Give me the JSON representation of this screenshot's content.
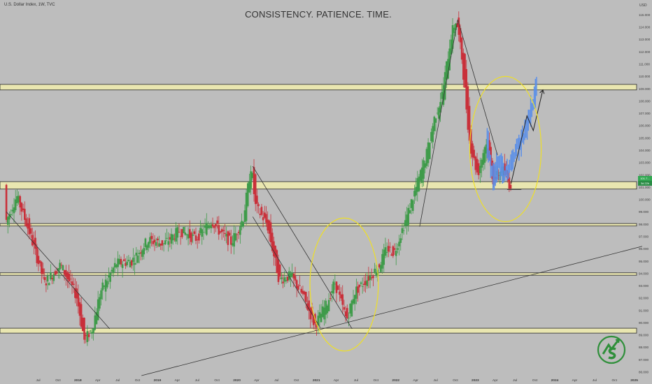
{
  "header": {
    "symbol": "U.S. Dollar Index, 1W, TVC",
    "title": "CONSISTENCY. PATIENCE. TIME."
  },
  "price_labels": {
    "last": "101.7...",
    "countdown": "3d 22h"
  },
  "colors": {
    "background": "#bdbdbd",
    "up": "#3f9b4a",
    "down": "#c9303a",
    "projection": "#5b8fe8",
    "zone_fill": "#e9e6b0",
    "zone_border": "#3b3b3b",
    "circle": "#eedf27",
    "axis_text": "#3b3b3b",
    "logo": "#2f8f3a"
  },
  "chart_data": {
    "type": "candlestick",
    "title": "CONSISTENCY. PATIENCE. TIME.",
    "series_name": "U.S. Dollar Index, 1W, TVC",
    "y_axis": {
      "currency": "USD",
      "range": [
        85.7,
        116.2
      ],
      "ticks": [
        "115.000",
        "114.000",
        "113.000",
        "112.000",
        "111.000",
        "110.000",
        "109.000",
        "108.000",
        "107.000",
        "106.000",
        "105.000",
        "104.000",
        "103.000",
        "102.000",
        "101.000",
        "100.000",
        "99.000",
        "98.000",
        "97.000",
        "96.000",
        "95.000",
        "94.000",
        "93.000",
        "92.000",
        "91.000",
        "90.000",
        "89.000",
        "88.000",
        "87.000",
        "86.000"
      ],
      "tick_values": [
        115,
        114,
        113,
        112,
        111,
        110,
        109,
        108,
        107,
        106,
        105,
        104,
        103,
        102,
        101,
        100,
        99,
        98,
        97,
        96,
        95,
        94,
        93,
        92,
        91,
        90,
        89,
        88,
        87,
        86
      ]
    },
    "x_axis": {
      "labels": [
        "Jul",
        "Oct",
        "2018",
        "Apr",
        "Jul",
        "Oct",
        "2019",
        "Apr",
        "Jul",
        "Oct",
        "2020",
        "Apr",
        "Jul",
        "Oct",
        "2021",
        "Apr",
        "Jul",
        "Oct",
        "2022",
        "Apr",
        "Jul",
        "Oct",
        "2023",
        "Apr",
        "Jul",
        "Oct",
        "2024",
        "Apr",
        "Jul",
        "Oct",
        "2025"
      ],
      "dates": [
        2017.5,
        2017.75,
        2018,
        2018.25,
        2018.5,
        2018.75,
        2019,
        2019.25,
        2019.5,
        2019.75,
        2020,
        2020.25,
        2020.5,
        2020.75,
        2021,
        2021.25,
        2021.5,
        2021.75,
        2022,
        2022.25,
        2022.5,
        2022.75,
        2023,
        2023.25,
        2023.5,
        2023.75,
        2024,
        2024.25,
        2024.5,
        2024.75,
        2025
      ]
    },
    "price_path": [
      [
        2017.1,
        98.0
      ],
      [
        2017.25,
        100.3
      ],
      [
        2017.4,
        97.5
      ],
      [
        2017.6,
        93.2
      ],
      [
        2017.8,
        94.7
      ],
      [
        2018.0,
        92.2
      ],
      [
        2018.1,
        88.6
      ],
      [
        2018.2,
        89.5
      ],
      [
        2018.3,
        92.5
      ],
      [
        2018.5,
        94.8
      ],
      [
        2018.7,
        95.0
      ],
      [
        2018.9,
        96.7
      ],
      [
        2019.1,
        96.4
      ],
      [
        2019.3,
        97.5
      ],
      [
        2019.5,
        96.8
      ],
      [
        2019.7,
        98.3
      ],
      [
        2019.8,
        97.4
      ],
      [
        2019.95,
        96.5
      ],
      [
        2020.1,
        98.5
      ],
      [
        2020.2,
        102.8
      ],
      [
        2020.25,
        99.5
      ],
      [
        2020.4,
        98.0
      ],
      [
        2020.55,
        93.5
      ],
      [
        2020.7,
        93.8
      ],
      [
        2020.85,
        92.2
      ],
      [
        2021.0,
        89.8
      ],
      [
        2021.15,
        91.5
      ],
      [
        2021.25,
        93.3
      ],
      [
        2021.4,
        90.2
      ],
      [
        2021.5,
        92.5
      ],
      [
        2021.65,
        93.5
      ],
      [
        2021.8,
        94.5
      ],
      [
        2021.9,
        96.0
      ],
      [
        2022.0,
        95.7
      ],
      [
        2022.15,
        98.5
      ],
      [
        2022.3,
        101.5
      ],
      [
        2022.4,
        103.5
      ],
      [
        2022.5,
        106.5
      ],
      [
        2022.6,
        108.5
      ],
      [
        2022.72,
        113.5
      ],
      [
        2022.78,
        114.6
      ],
      [
        2022.85,
        111.5
      ],
      [
        2022.95,
        104.5
      ],
      [
        2023.05,
        102.0
      ],
      [
        2023.15,
        104.7
      ],
      [
        2023.25,
        101.5
      ],
      [
        2023.35,
        102.5
      ],
      [
        2023.45,
        101.2
      ]
    ],
    "projection_path": [
      [
        2023.15,
        104.8
      ],
      [
        2023.22,
        101.8
      ],
      [
        2023.3,
        103.0
      ],
      [
        2023.38,
        101.9
      ],
      [
        2023.45,
        103.0
      ],
      [
        2023.55,
        104.5
      ],
      [
        2023.65,
        105.7
      ],
      [
        2023.7,
        107.0
      ],
      [
        2023.78,
        109.2
      ]
    ],
    "projection_arrow": [
      [
        2023.45,
        101.3
      ],
      [
        2023.65,
        106.8
      ],
      [
        2023.73,
        105.6
      ],
      [
        2023.85,
        108.9
      ]
    ],
    "zones": [
      [
        108.9,
        109.35
      ],
      [
        100.85,
        101.45
      ],
      [
        97.85,
        98.05
      ],
      [
        93.85,
        94.05
      ],
      [
        89.15,
        89.55
      ]
    ],
    "trendlines": [
      [
        [
          2017.1,
          99.0
        ],
        [
          2018.4,
          89.5
        ]
      ],
      [
        [
          2020.2,
          102.7
        ],
        [
          2021.45,
          89.5
        ]
      ],
      [
        [
          2020.2,
          98.6
        ],
        [
          2021.05,
          89.6
        ]
      ],
      [
        [
          2022.3,
          97.8
        ],
        [
          2022.78,
          114.6
        ]
      ],
      [
        [
          2022.78,
          114.6
        ],
        [
          2023.28,
          103.6
        ]
      ],
      [
        [
          2023.4,
          100.8
        ],
        [
          2023.58,
          100.8
        ]
      ],
      [
        [
          2018.8,
          85.7
        ],
        [
          2025.1,
          96.2
        ]
      ]
    ],
    "circles": [
      {
        "cx": 2021.35,
        "cy": 93.1,
        "rx": 0.43,
        "ry": 5.4
      },
      {
        "cx": 2023.38,
        "cy": 104.1,
        "rx": 0.45,
        "ry": 5.9
      }
    ]
  }
}
